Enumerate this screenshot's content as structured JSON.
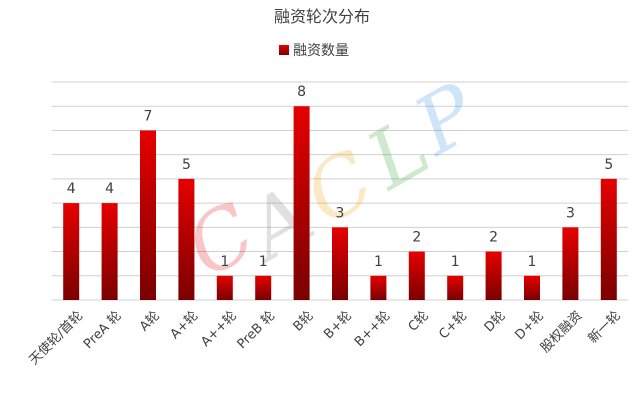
{
  "chart_data": {
    "type": "bar",
    "title": "融资轮次分布",
    "legend": {
      "label": "融资数量",
      "position": "top"
    },
    "categories": [
      "天使轮/首轮",
      "PreA 轮",
      "A轮",
      "A+轮",
      "A++轮",
      "PreB 轮",
      "B轮",
      "B+轮",
      "B++轮",
      "C轮",
      "C+轮",
      "D轮",
      "D+轮",
      "股权融资",
      "新一轮"
    ],
    "series": [
      {
        "name": "融资数量",
        "values": [
          4,
          4,
          7,
          5,
          1,
          1,
          8,
          3,
          1,
          2,
          1,
          2,
          1,
          3,
          5
        ]
      }
    ],
    "ylim": [
      0,
      9
    ],
    "grid": true,
    "data_labels": true,
    "bar_color_top": "#e60000",
    "bar_color_bottom": "#7a0000",
    "watermark": "CACLP"
  }
}
